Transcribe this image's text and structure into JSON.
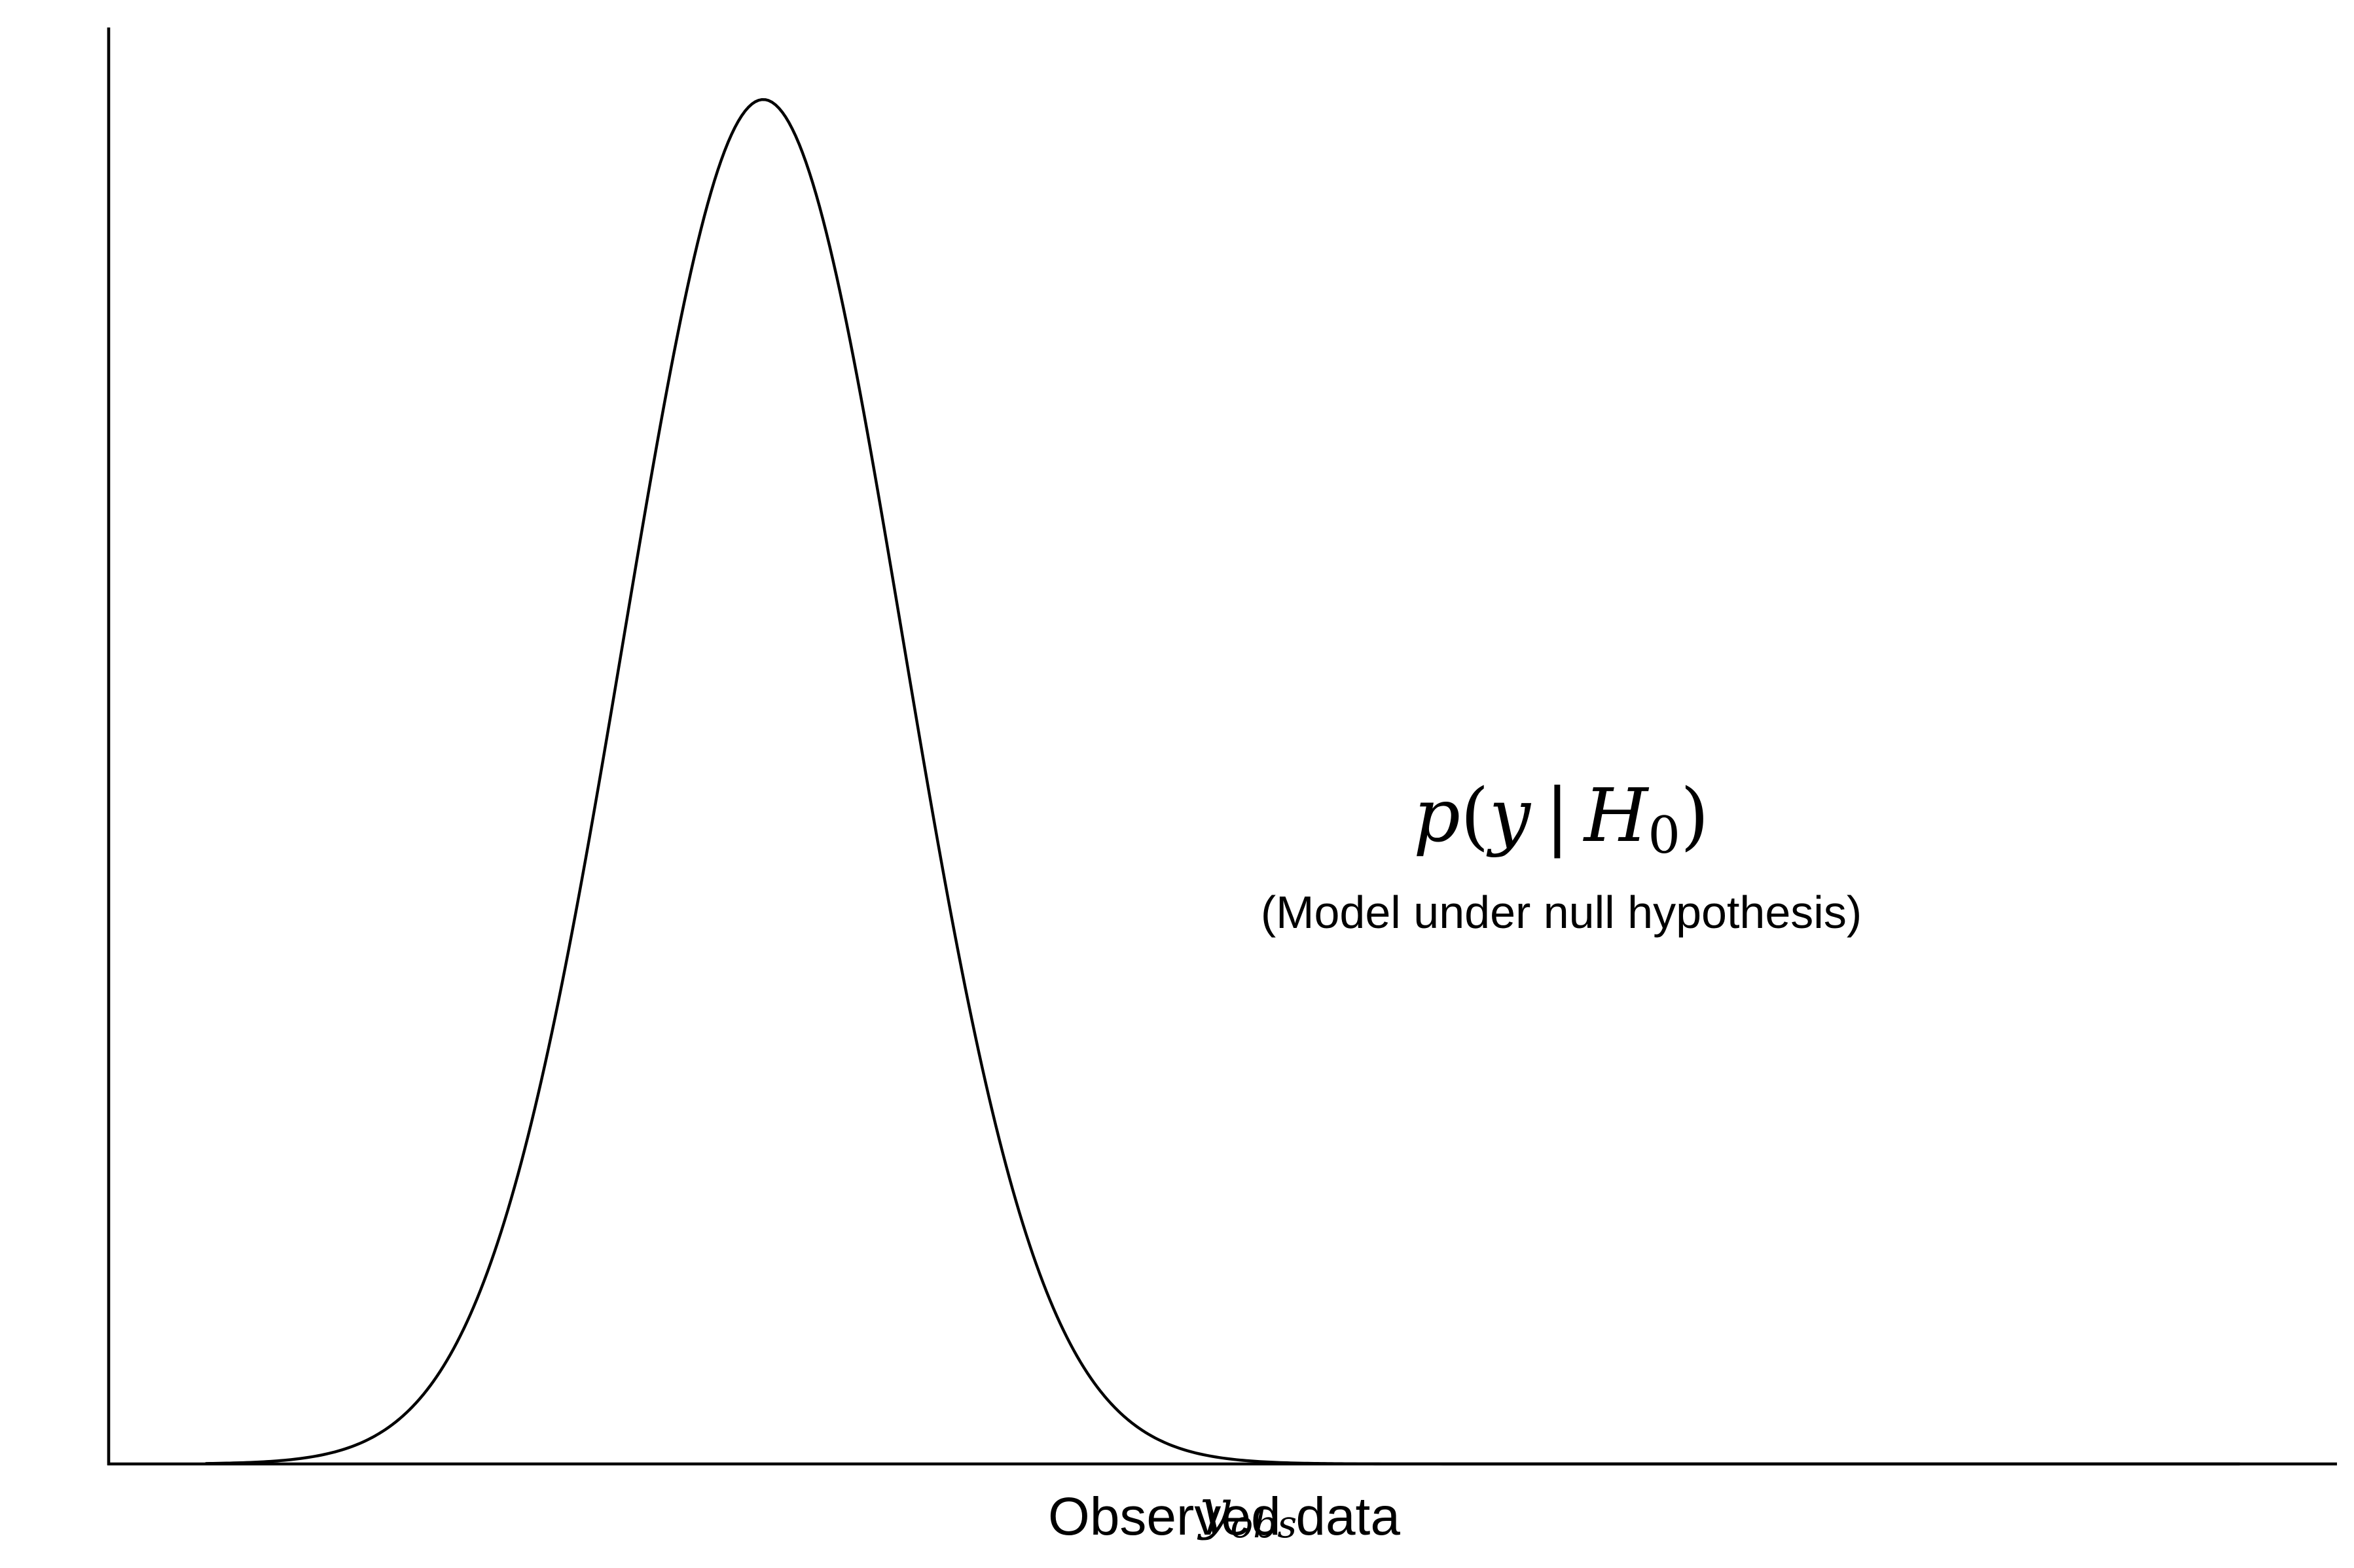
{
  "chart_data": {
    "type": "area",
    "title": "",
    "xlabel": "Observed data",
    "ylabel": "",
    "xlim": [
      -3.5,
      12.5
    ],
    "ylim": [
      0,
      0.42
    ],
    "grid": false,
    "legend": "none",
    "series": [
      {
        "name": "",
        "distribution": "normal",
        "mean": 1.2,
        "sd": 1.0,
        "x_range": [
          -2.8,
          11.8
        ],
        "color": "#000000"
      }
    ],
    "tail_region": {
      "x_from": 4.7,
      "x_to": 11.8,
      "fill_color": "#d7e5f0"
    },
    "markers": [
      {
        "x": 4.7,
        "label": "y",
        "label_subscript": "obs"
      }
    ],
    "annotations": [
      {
        "math": {
          "func": "p",
          "open": "(",
          "var": "y",
          "sep": "|",
          "hyp": "H",
          "hyp_subscript": "0",
          "close": ")"
        },
        "text": "(Model under null hypothesis)"
      }
    ]
  }
}
